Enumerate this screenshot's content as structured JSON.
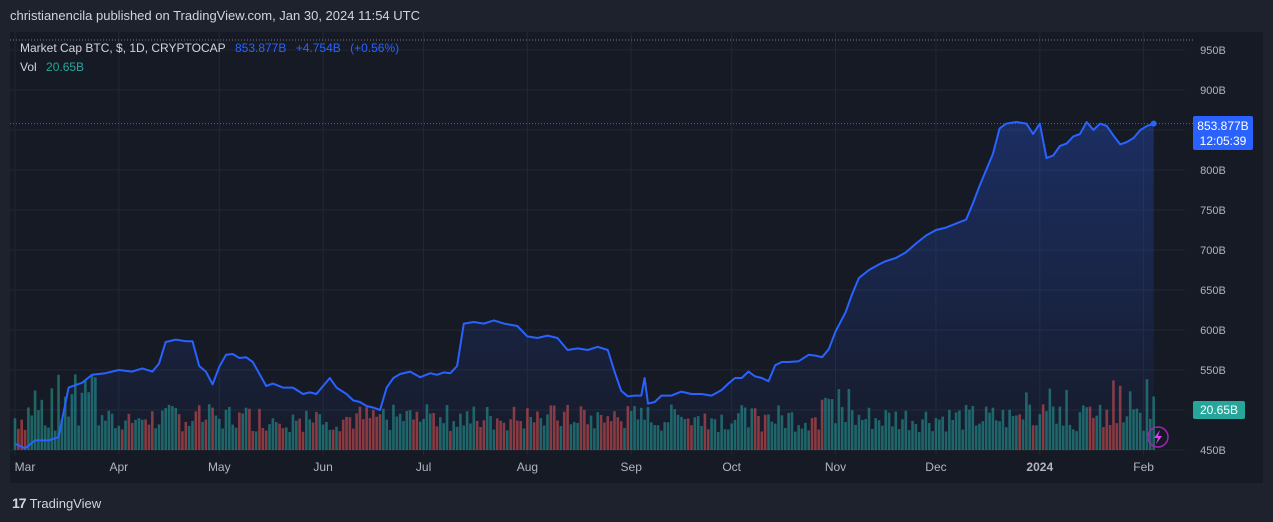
{
  "header": {
    "published_text": "christianencila published on TradingView.com, Jan 30, 2024 11:54 UTC"
  },
  "legend": {
    "symbol_line": "Market Cap BTC, $, 1D, CRYPTOCAP",
    "last_value": "853.877B",
    "change": "+4.754B",
    "change_pct": "(+0.56%)",
    "vol_label": "Vol",
    "vol_value": "20.65B"
  },
  "price_label": {
    "value": "853.877B",
    "countdown": "12:05:39"
  },
  "volume_label": {
    "value": "20.65B"
  },
  "footer": {
    "logo_text": "TradingView"
  },
  "colors": {
    "line": "#2962ff",
    "up": "#26a69a",
    "down": "#ef5350",
    "background": "#161a25",
    "grid": "#232734"
  },
  "chart_data": {
    "type": "area",
    "y_axis_ticks": [
      "950B",
      "900B",
      "850B",
      "800B",
      "750B",
      "700B",
      "650B",
      "600B",
      "550B",
      "500B",
      "450B"
    ],
    "ylim": [
      450,
      960
    ],
    "x_axis_ticks": [
      "Mar",
      "Apr",
      "May",
      "Jun",
      "Jul",
      "Aug",
      "Sep",
      "Oct",
      "Nov",
      "Dec",
      "2024",
      "Feb"
    ],
    "x_tick_days": [
      0,
      31,
      61,
      92,
      122,
      153,
      184,
      214,
      245,
      275,
      306,
      337
    ],
    "xlim_days": [
      0,
      341
    ],
    "series": [
      {
        "kind": "market_cap_line",
        "unit": "B USD",
        "points": [
          [
            0,
            458
          ],
          [
            3,
            452
          ],
          [
            6,
            462
          ],
          [
            10,
            462
          ],
          [
            13,
            466
          ],
          [
            16,
            528
          ],
          [
            20,
            534
          ],
          [
            23,
            544
          ],
          [
            27,
            546
          ],
          [
            31,
            550
          ],
          [
            35,
            548
          ],
          [
            38,
            552
          ],
          [
            41,
            548
          ],
          [
            43,
            558
          ],
          [
            45,
            585
          ],
          [
            48,
            588
          ],
          [
            51,
            586
          ],
          [
            53,
            586
          ],
          [
            55,
            555
          ],
          [
            57,
            548
          ],
          [
            59,
            532
          ],
          [
            61,
            554
          ],
          [
            63,
            569
          ],
          [
            65,
            570
          ],
          [
            67,
            565
          ],
          [
            69,
            566
          ],
          [
            71,
            560
          ],
          [
            73,
            545
          ],
          [
            75,
            530
          ],
          [
            77,
            533
          ],
          [
            80,
            528
          ],
          [
            83,
            528
          ],
          [
            86,
            520
          ],
          [
            88,
            522
          ],
          [
            90,
            520
          ],
          [
            92,
            530
          ],
          [
            94,
            540
          ],
          [
            96,
            528
          ],
          [
            99,
            520
          ],
          [
            101,
            512
          ],
          [
            103,
            510
          ],
          [
            105,
            505
          ],
          [
            107,
            503
          ],
          [
            109,
            500
          ],
          [
            111,
            528
          ],
          [
            113,
            540
          ],
          [
            115,
            545
          ],
          [
            118,
            548
          ],
          [
            121,
            541
          ],
          [
            124,
            546
          ],
          [
            126,
            544
          ],
          [
            128,
            547
          ],
          [
            130,
            546
          ],
          [
            132,
            555
          ],
          [
            134,
            608
          ],
          [
            137,
            610
          ],
          [
            140,
            608
          ],
          [
            143,
            612
          ],
          [
            146,
            608
          ],
          [
            150,
            605
          ],
          [
            153,
            592
          ],
          [
            156,
            590
          ],
          [
            159,
            593
          ],
          [
            162,
            590
          ],
          [
            165,
            575
          ],
          [
            168,
            577
          ],
          [
            171,
            575
          ],
          [
            174,
            579
          ],
          [
            177,
            575
          ],
          [
            179,
            548
          ],
          [
            181,
            524
          ],
          [
            183,
            517
          ],
          [
            185,
            518
          ],
          [
            187,
            518
          ],
          [
            188,
            540
          ],
          [
            189,
            508
          ],
          [
            191,
            510
          ],
          [
            193,
            518
          ],
          [
            196,
            518
          ],
          [
            199,
            523
          ],
          [
            202,
            520
          ],
          [
            205,
            520
          ],
          [
            208,
            518
          ],
          [
            211,
            525
          ],
          [
            213,
            533
          ],
          [
            215,
            540
          ],
          [
            217,
            540
          ],
          [
            219,
            548
          ],
          [
            221,
            542
          ],
          [
            223,
            540
          ],
          [
            225,
            536
          ],
          [
            227,
            556
          ],
          [
            229,
            560
          ],
          [
            231,
            560
          ],
          [
            234,
            561
          ],
          [
            237,
            569
          ],
          [
            239,
            568
          ],
          [
            241,
            566
          ],
          [
            243,
            576
          ],
          [
            245,
            598
          ],
          [
            248,
            622
          ],
          [
            250,
            645
          ],
          [
            252,
            665
          ],
          [
            255,
            675
          ],
          [
            258,
            682
          ],
          [
            260,
            686
          ],
          [
            263,
            690
          ],
          [
            266,
            697
          ],
          [
            269,
            708
          ],
          [
            272,
            718
          ],
          [
            275,
            725
          ],
          [
            278,
            728
          ],
          [
            281,
            733
          ],
          [
            284,
            738
          ],
          [
            286,
            758
          ],
          [
            288,
            780
          ],
          [
            290,
            800
          ],
          [
            292,
            820
          ],
          [
            294,
            852
          ],
          [
            296,
            858
          ],
          [
            299,
            860
          ],
          [
            302,
            858
          ],
          [
            304,
            845
          ],
          [
            306,
            858
          ],
          [
            308,
            815
          ],
          [
            310,
            818
          ],
          [
            312,
            830
          ],
          [
            314,
            833
          ],
          [
            316,
            842
          ],
          [
            318,
            845
          ],
          [
            320,
            860
          ],
          [
            322,
            850
          ],
          [
            324,
            858
          ],
          [
            326,
            855
          ],
          [
            328,
            843
          ],
          [
            330,
            832
          ],
          [
            332,
            835
          ],
          [
            334,
            840
          ],
          [
            336,
            850
          ],
          [
            338,
            855
          ],
          [
            340,
            858
          ]
        ]
      }
    ],
    "volume_series": {
      "kind": "volume_bars",
      "last_value": "20.65B",
      "ylim": [
        0,
        80
      ],
      "points_per_day": "approx"
    }
  }
}
